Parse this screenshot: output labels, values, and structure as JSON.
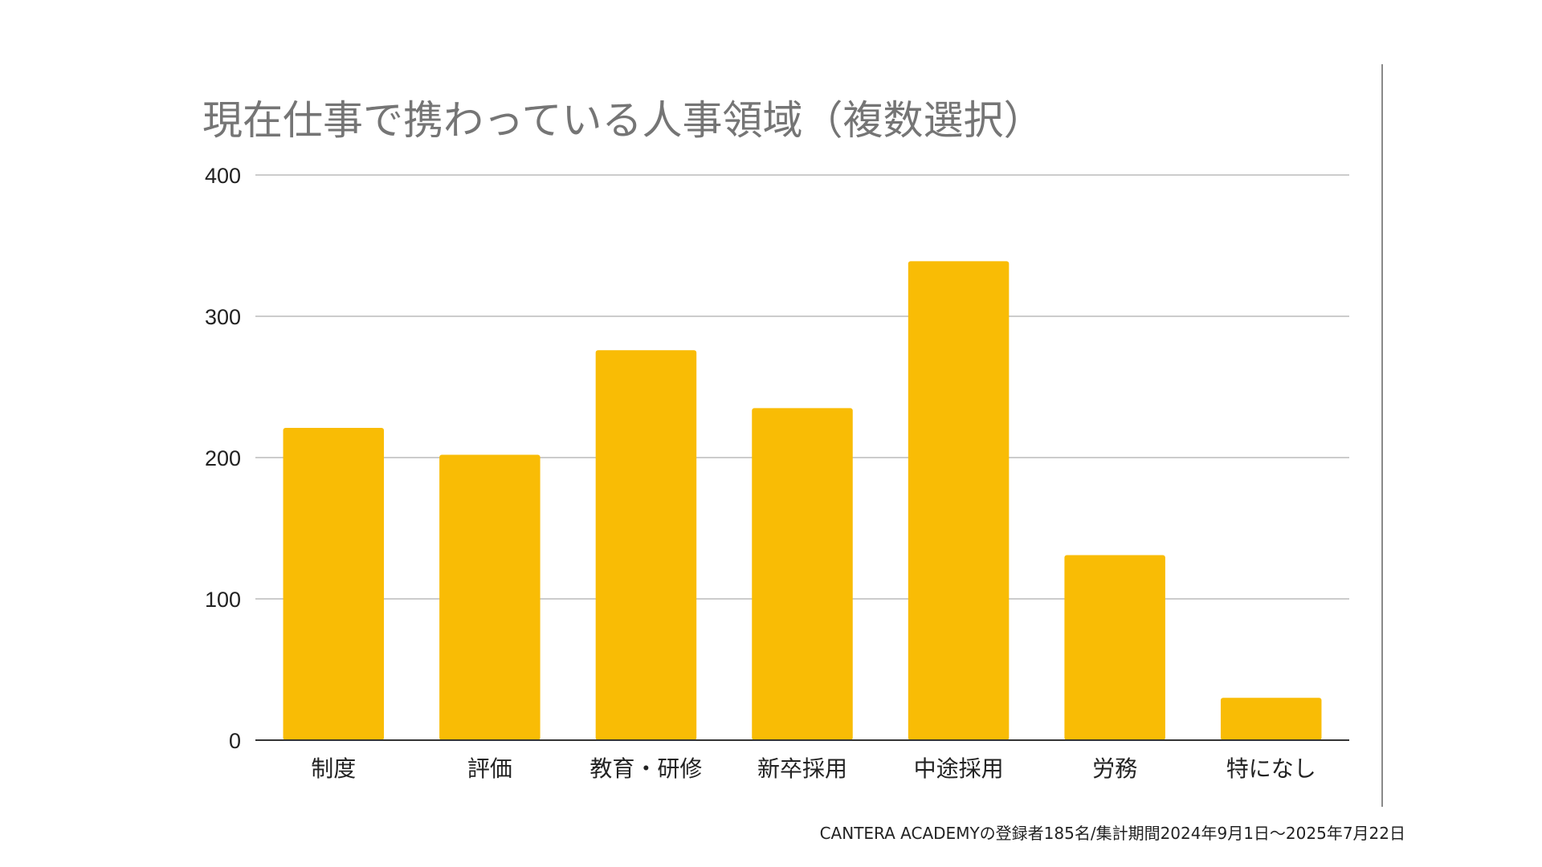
{
  "chart_data": {
    "type": "bar",
    "title": "現在仕事で携わっている人事領域（複数選択）",
    "categories": [
      "制度",
      "評価",
      "教育・研修",
      "新卒採用",
      "中途採用",
      "労務",
      "特になし"
    ],
    "values": [
      221,
      202,
      276,
      235,
      339,
      131,
      30
    ],
    "ylim": [
      0,
      400
    ],
    "yticks": [
      0,
      100,
      200,
      300,
      400
    ],
    "grid": true,
    "legend": "none",
    "bar_color": "#F9BC05"
  },
  "footnote": "CANTERA ACADEMYの登録者185名/集計期間2024年9月1日〜2025年7月22日"
}
